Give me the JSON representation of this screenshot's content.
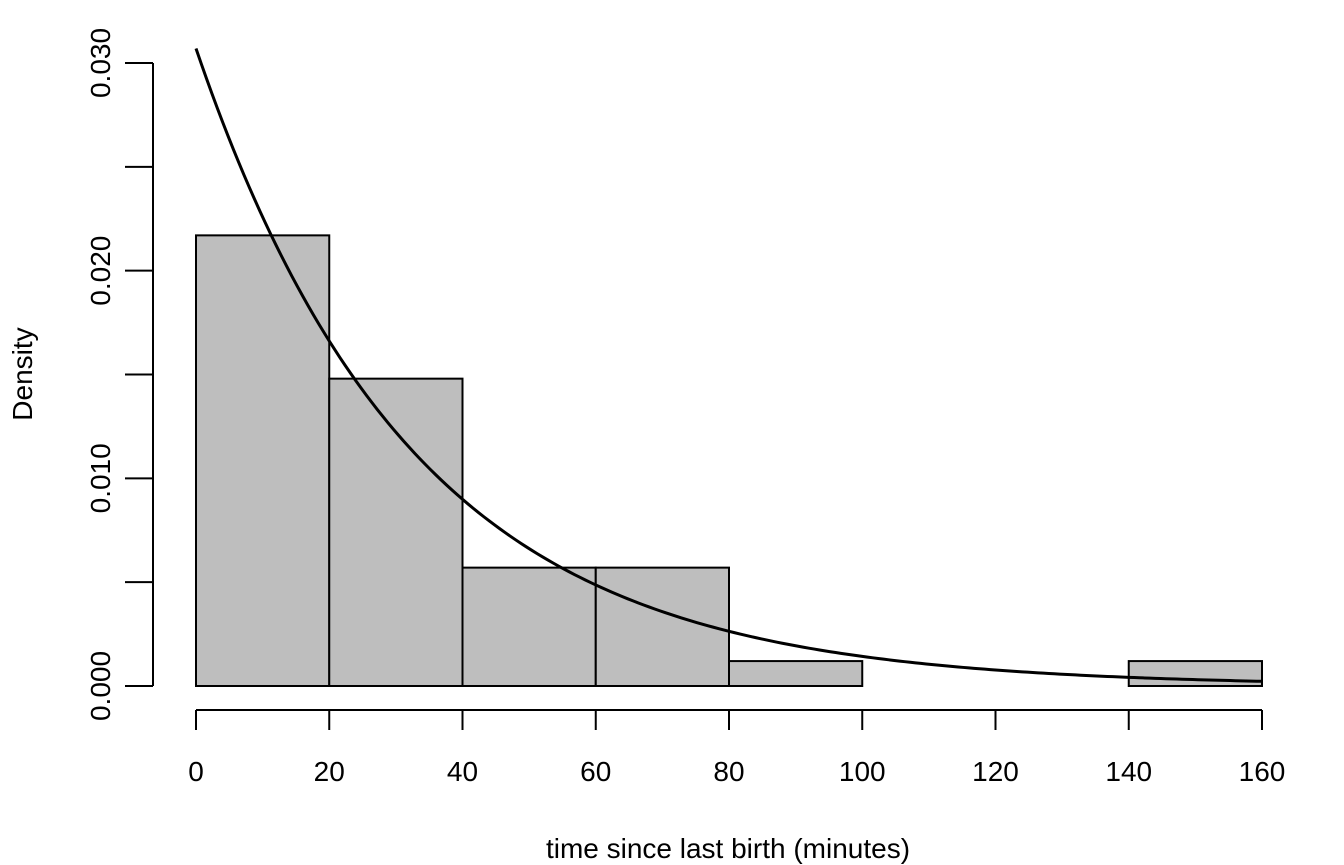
{
  "chart_data": {
    "type": "bar",
    "title": "",
    "xlabel": "time since last birth (minutes)",
    "ylabel": "Density",
    "xlim": [
      0,
      160
    ],
    "ylim": [
      0,
      0.03
    ],
    "x_ticks": [
      "0",
      "20",
      "40",
      "60",
      "80",
      "100",
      "120",
      "140",
      "160"
    ],
    "y_ticks": [
      "0.000",
      "0.010",
      "0.020",
      "0.030"
    ],
    "y_minor_ticks": [
      0.005,
      0.015,
      0.025
    ],
    "bins": [
      {
        "from": 0,
        "to": 20,
        "density": 0.0217
      },
      {
        "from": 20,
        "to": 40,
        "density": 0.0148
      },
      {
        "from": 40,
        "to": 60,
        "density": 0.0057
      },
      {
        "from": 60,
        "to": 80,
        "density": 0.0057
      },
      {
        "from": 80,
        "to": 100,
        "density": 0.0012
      },
      {
        "from": 100,
        "to": 120,
        "density": 0
      },
      {
        "from": 120,
        "to": 140,
        "density": 0
      },
      {
        "from": 140,
        "to": 160,
        "density": 0.0012
      }
    ],
    "curve": {
      "type": "exponential-density",
      "rate": 0.0307,
      "x_range": [
        0,
        160
      ]
    },
    "colors": {
      "bar_fill": "#bebebe",
      "bar_stroke": "#000000",
      "curve": "#000000"
    },
    "grid": false
  }
}
